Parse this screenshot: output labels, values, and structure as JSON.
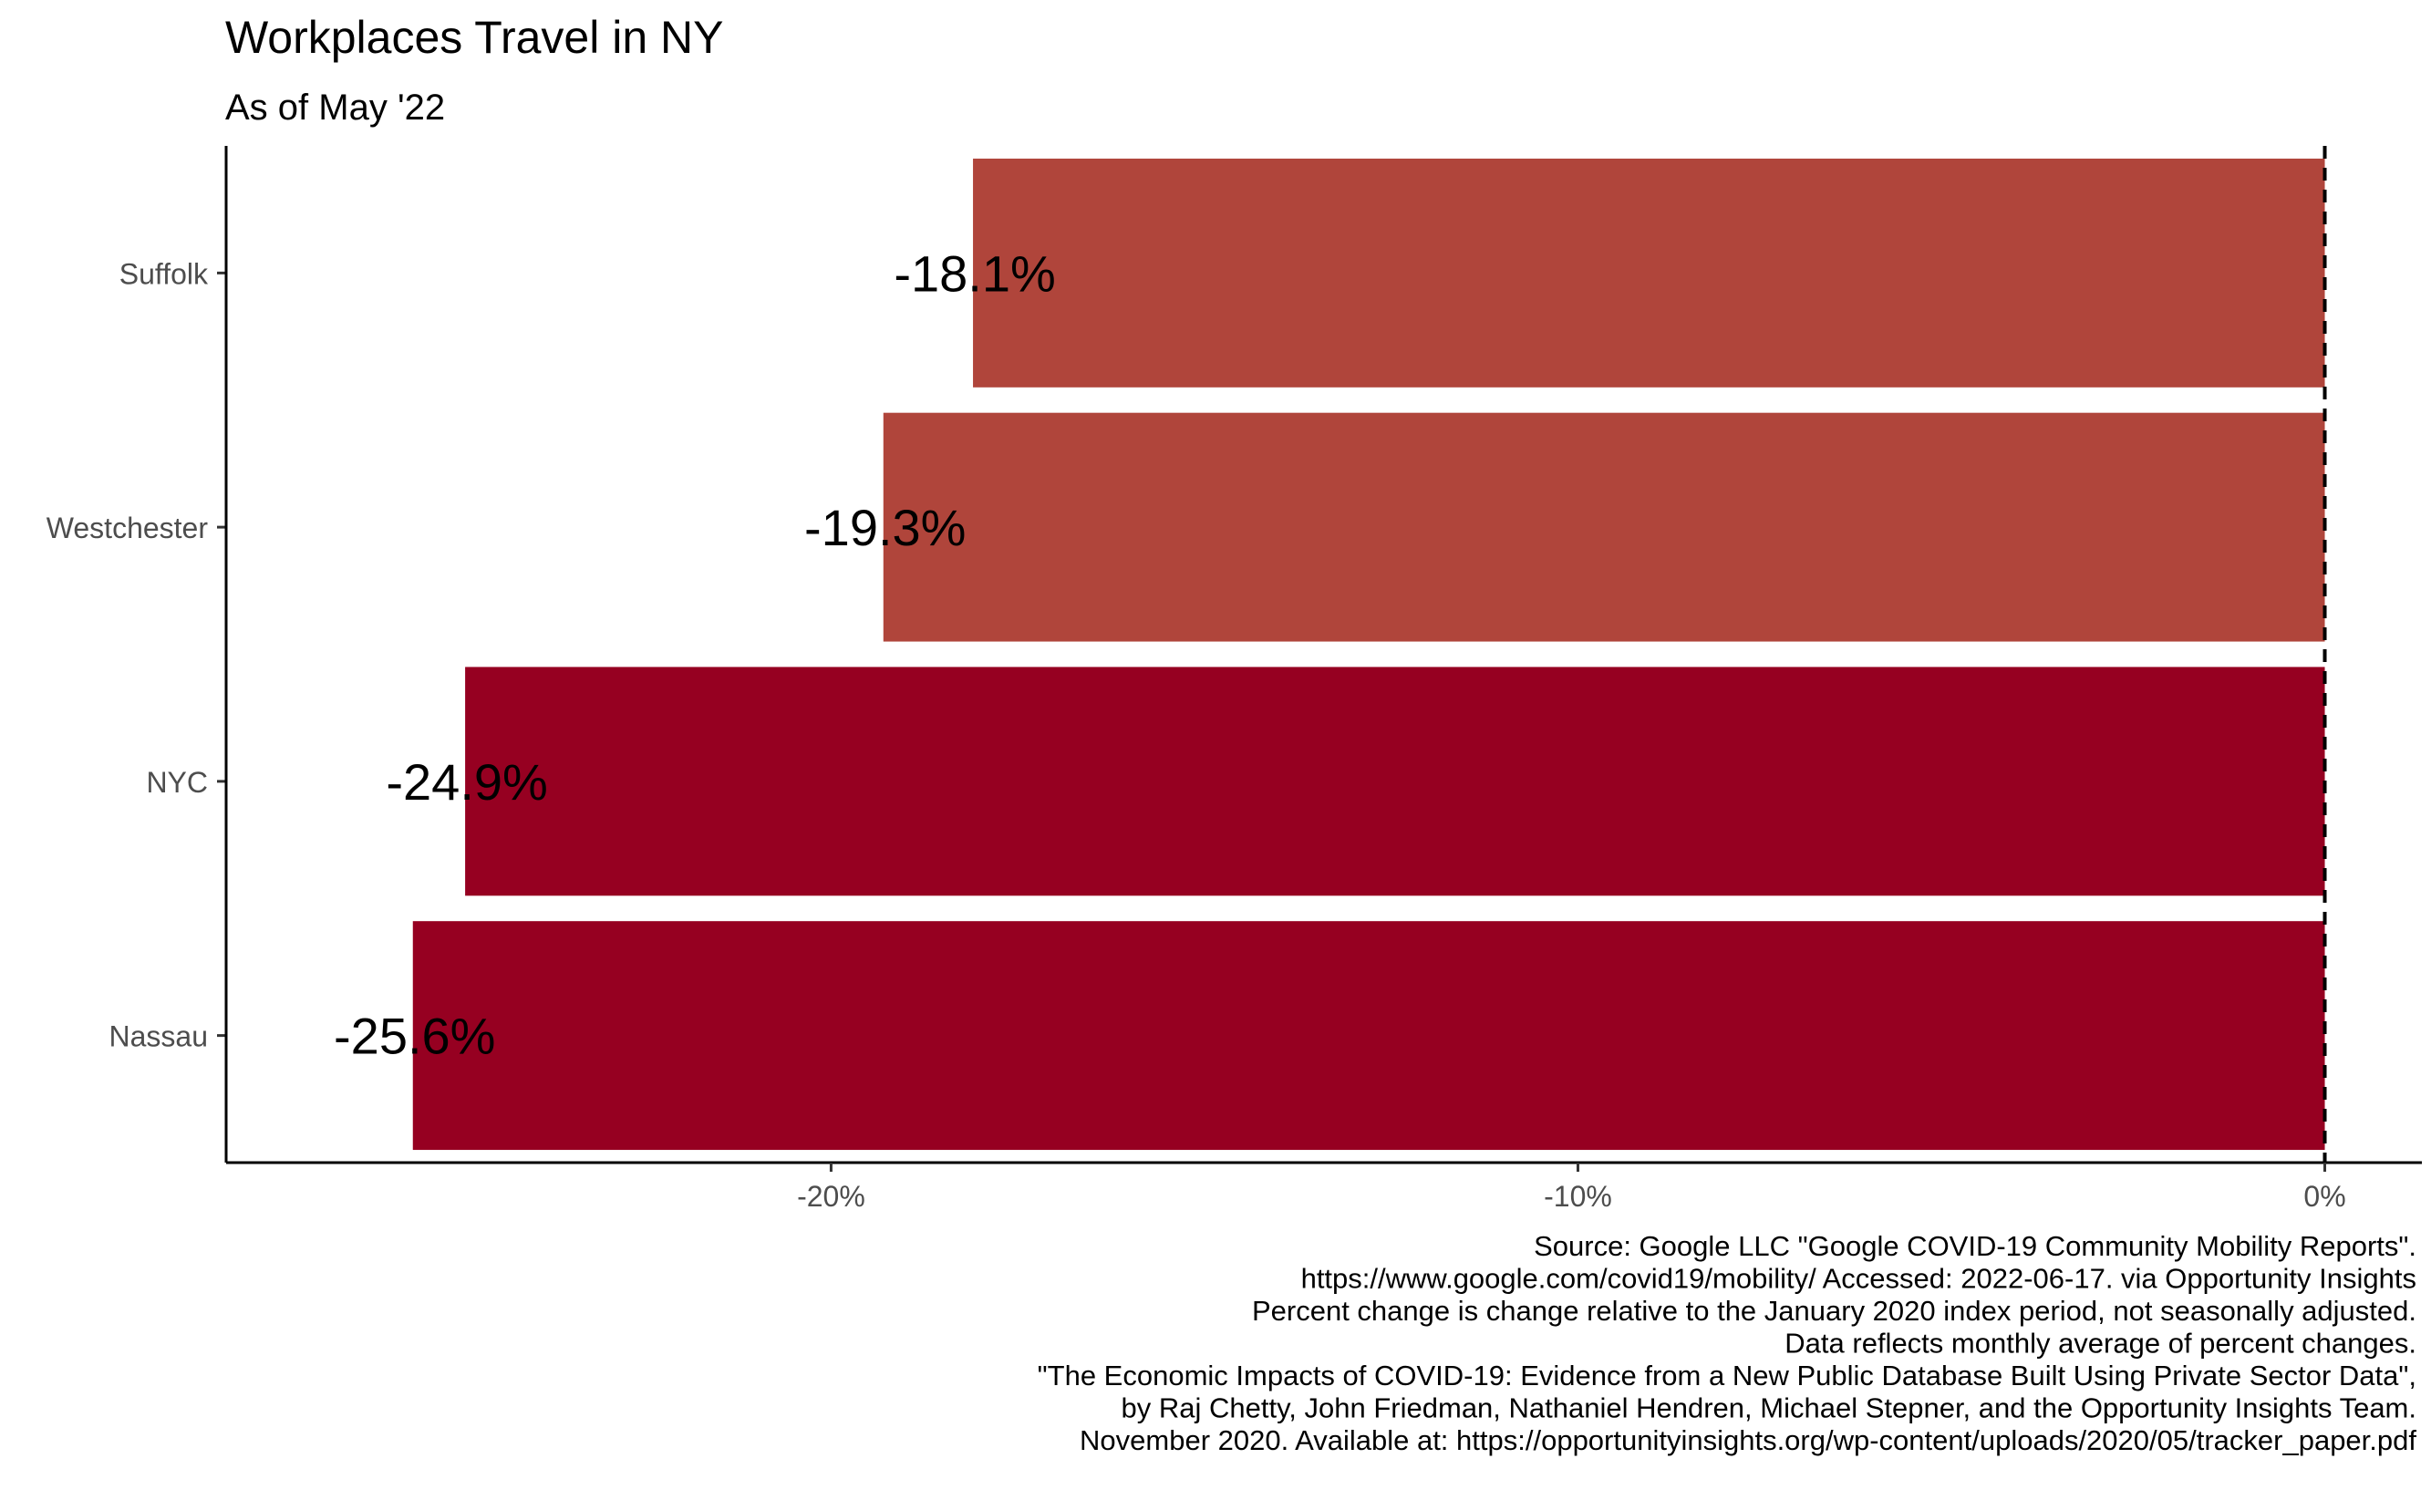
{
  "chart_data": {
    "type": "bar",
    "orientation": "horizontal",
    "title": "Workplaces Travel in NY",
    "subtitle": "As of May '22",
    "categories": [
      "Suffolk",
      "Westchester",
      "NYC",
      "Nassau"
    ],
    "values": [
      -18.1,
      -19.3,
      -24.9,
      -25.6
    ],
    "data_labels": [
      "-18.1%",
      "-19.3%",
      "-24.9%",
      "-25.6%"
    ],
    "bar_colors": [
      "#B0453B",
      "#B0453B",
      "#960021",
      "#960021"
    ],
    "xlim": [
      -28.1,
      1.3
    ],
    "x_ticks": [
      -20,
      -10,
      0
    ],
    "x_tick_labels": [
      "-20%",
      "-10%",
      "0%"
    ],
    "xlabel": "",
    "ylabel": "",
    "reference_line": 0,
    "grid": false,
    "legend": "none",
    "caption": [
      "Source: Google LLC \"Google COVID-19 Community Mobility Reports\".",
      "https://www.google.com/covid19/mobility/ Accessed: 2022-06-17. via Opportunity Insights",
      "Percent change is change relative to the January 2020 index period, not seasonally adjusted.",
      "Data reflects monthly average of percent changes.",
      "\"The Economic Impacts of COVID-19: Evidence from a New Public Database Built Using Private Sector Data\",",
      "by Raj Chetty, John Friedman, Nathaniel Hendren, Michael Stepner, and the Opportunity Insights Team.",
      "November 2020. Available at: https://opportunityinsights.org/wp-content/uploads/2020/05/tracker_paper.pdf"
    ]
  }
}
